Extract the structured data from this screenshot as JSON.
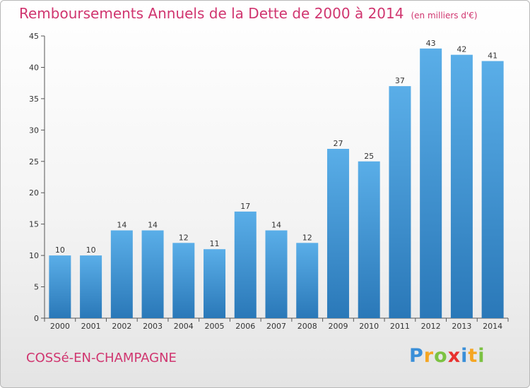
{
  "chart_data": {
    "type": "bar",
    "title": "Remboursements Annuels de la Dette de 2000 à 2014",
    "unit": "(en milliers d'€)",
    "categories": [
      "2000",
      "2001",
      "2002",
      "2003",
      "2004",
      "2005",
      "2006",
      "2007",
      "2008",
      "2009",
      "2010",
      "2011",
      "2012",
      "2013",
      "2014"
    ],
    "values": [
      10,
      10,
      14,
      14,
      12,
      11,
      17,
      14,
      12,
      27,
      25,
      37,
      43,
      42,
      41
    ],
    "ylim": [
      0,
      45
    ],
    "yticks": [
      0,
      5,
      10,
      15,
      20,
      25,
      30,
      35,
      40,
      45
    ],
    "xlabel": "",
    "ylabel": "",
    "grid": false,
    "bar_color_top": "#5aaee8",
    "bar_color_bottom": "#2a78b8"
  },
  "footer": {
    "commune": "COSSé-EN-CHAMPAGNE",
    "logo_letters": [
      {
        "char": "P",
        "color": "#3a8fd8"
      },
      {
        "char": "r",
        "color": "#f5a623"
      },
      {
        "char": "o",
        "color": "#7cc242"
      },
      {
        "char": "x",
        "color": "#e8312f"
      },
      {
        "char": "i",
        "color": "#3a8fd8"
      },
      {
        "char": "t",
        "color": "#f5a623"
      },
      {
        "char": "i",
        "color": "#7cc242"
      }
    ]
  },
  "colors": {
    "title": "#d0356f",
    "axis": "#555555"
  }
}
